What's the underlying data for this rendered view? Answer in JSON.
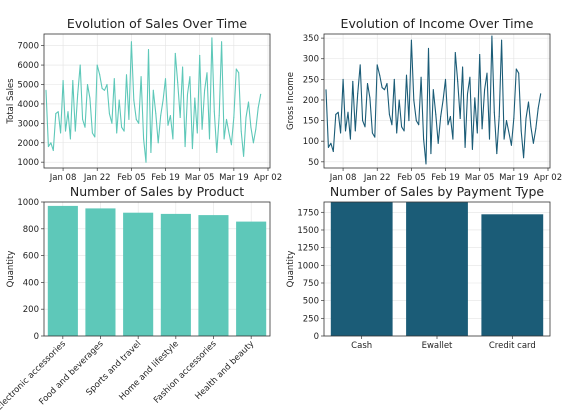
{
  "colors": {
    "teal": "#5ec8b9",
    "navy": "#1b5c77"
  },
  "chart_data": [
    {
      "type": "line",
      "title": "Evolution of Sales Over Time",
      "xlabel": "",
      "ylabel": "Total Sales",
      "x_ticks": [
        "Jan 08",
        "Jan 22",
        "Feb 05",
        "Feb 19",
        "Mar 05",
        "Mar 19",
        "Apr 02"
      ],
      "x_range": [
        "2019-01-01",
        "2019-04-02"
      ],
      "ylim": [
        700,
        7600
      ],
      "y_ticks": [
        1000,
        2000,
        3000,
        4000,
        5000,
        6000,
        7000
      ],
      "grid": true,
      "color": "#5ec8b9",
      "series": [
        {
          "x": [
            "2019-01-01",
            "2019-01-02",
            "2019-01-03",
            "2019-01-04",
            "2019-01-05",
            "2019-01-06",
            "2019-01-07",
            "2019-01-08",
            "2019-01-09",
            "2019-01-10",
            "2019-01-11",
            "2019-01-12",
            "2019-01-13",
            "2019-01-14",
            "2019-01-15",
            "2019-01-16",
            "2019-01-17",
            "2019-01-18",
            "2019-01-19",
            "2019-01-20",
            "2019-01-21",
            "2019-01-22",
            "2019-01-23",
            "2019-01-24",
            "2019-01-25",
            "2019-01-26",
            "2019-01-27",
            "2019-01-28",
            "2019-01-29",
            "2019-01-30",
            "2019-01-31",
            "2019-02-01",
            "2019-02-02",
            "2019-02-03",
            "2019-02-04",
            "2019-02-05",
            "2019-02-06",
            "2019-02-07",
            "2019-02-08",
            "2019-02-09",
            "2019-02-10",
            "2019-02-11",
            "2019-02-12",
            "2019-02-13",
            "2019-02-14",
            "2019-02-15",
            "2019-02-16",
            "2019-02-17",
            "2019-02-18",
            "2019-02-19",
            "2019-02-20",
            "2019-02-21",
            "2019-02-22",
            "2019-02-23",
            "2019-02-24",
            "2019-02-25",
            "2019-02-26",
            "2019-02-27",
            "2019-02-28",
            "2019-03-01",
            "2019-03-02",
            "2019-03-03",
            "2019-03-04",
            "2019-03-05",
            "2019-03-06",
            "2019-03-07",
            "2019-03-08",
            "2019-03-09",
            "2019-03-10",
            "2019-03-11",
            "2019-03-12",
            "2019-03-13",
            "2019-03-14",
            "2019-03-15",
            "2019-03-16",
            "2019-03-17",
            "2019-03-18",
            "2019-03-19",
            "2019-03-20",
            "2019-03-21",
            "2019-03-22",
            "2019-03-23",
            "2019-03-24",
            "2019-03-25",
            "2019-03-26",
            "2019-03-27",
            "2019-03-28",
            "2019-03-29",
            "2019-03-30"
          ],
          "values": [
            4700,
            1800,
            2000,
            1600,
            3500,
            3600,
            2500,
            5200,
            2600,
            3600,
            2200,
            5200,
            2600,
            4500,
            6000,
            3200,
            2800,
            5000,
            4300,
            2500,
            2300,
            6000,
            5500,
            4800,
            4700,
            5000,
            3500,
            3000,
            5300,
            2500,
            4200,
            2800,
            2600,
            5500,
            3200,
            7200,
            4200,
            3200,
            3000,
            5400,
            2200,
            1000,
            6800,
            1500,
            4700,
            3500,
            2000,
            3400,
            4200,
            5300,
            2900,
            3400,
            2200,
            6600,
            5100,
            3300,
            5900,
            1800,
            4500,
            5400,
            1700,
            4300,
            2500,
            6500,
            2700,
            4700,
            5600,
            2200,
            7400,
            3600,
            1500,
            3400,
            7200,
            2200,
            3200,
            2500,
            1900,
            3300,
            5800,
            5600,
            2600,
            1300,
            3300,
            4100,
            2800,
            2000,
            2700,
            3800,
            4500
          ]
        }
      ]
    },
    {
      "type": "line",
      "title": "Evolution of Income Over Time",
      "xlabel": "",
      "ylabel": "Gross Income",
      "x_ticks": [
        "Jan 08",
        "Jan 22",
        "Feb 05",
        "Feb 19",
        "Mar 05",
        "Mar 19",
        "Apr 02"
      ],
      "x_range": [
        "2019-01-01",
        "2019-04-02"
      ],
      "ylim": [
        35,
        360
      ],
      "y_ticks": [
        50,
        100,
        150,
        200,
        250,
        300,
        350
      ],
      "grid": true,
      "color": "#1b5c77",
      "series": [
        {
          "x": [
            "2019-01-01",
            "2019-01-02",
            "2019-01-03",
            "2019-01-04",
            "2019-01-05",
            "2019-01-06",
            "2019-01-07",
            "2019-01-08",
            "2019-01-09",
            "2019-01-10",
            "2019-01-11",
            "2019-01-12",
            "2019-01-13",
            "2019-01-14",
            "2019-01-15",
            "2019-01-16",
            "2019-01-17",
            "2019-01-18",
            "2019-01-19",
            "2019-01-20",
            "2019-01-21",
            "2019-01-22",
            "2019-01-23",
            "2019-01-24",
            "2019-01-25",
            "2019-01-26",
            "2019-01-27",
            "2019-01-28",
            "2019-01-29",
            "2019-01-30",
            "2019-01-31",
            "2019-02-01",
            "2019-02-02",
            "2019-02-03",
            "2019-02-04",
            "2019-02-05",
            "2019-02-06",
            "2019-02-07",
            "2019-02-08",
            "2019-02-09",
            "2019-02-10",
            "2019-02-11",
            "2019-02-12",
            "2019-02-13",
            "2019-02-14",
            "2019-02-15",
            "2019-02-16",
            "2019-02-17",
            "2019-02-18",
            "2019-02-19",
            "2019-02-20",
            "2019-02-21",
            "2019-02-22",
            "2019-02-23",
            "2019-02-24",
            "2019-02-25",
            "2019-02-26",
            "2019-02-27",
            "2019-02-28",
            "2019-03-01",
            "2019-03-02",
            "2019-03-03",
            "2019-03-04",
            "2019-03-05",
            "2019-03-06",
            "2019-03-07",
            "2019-03-08",
            "2019-03-09",
            "2019-03-10",
            "2019-03-11",
            "2019-03-12",
            "2019-03-13",
            "2019-03-14",
            "2019-03-15",
            "2019-03-16",
            "2019-03-17",
            "2019-03-18",
            "2019-03-19",
            "2019-03-20",
            "2019-03-21",
            "2019-03-22",
            "2019-03-23",
            "2019-03-24",
            "2019-03-25",
            "2019-03-26",
            "2019-03-27",
            "2019-03-28",
            "2019-03-29",
            "2019-03-30"
          ],
          "values": [
            225,
            85,
            95,
            75,
            165,
            170,
            120,
            250,
            125,
            170,
            105,
            245,
            125,
            215,
            285,
            150,
            135,
            240,
            205,
            120,
            110,
            285,
            260,
            230,
            225,
            240,
            165,
            140,
            250,
            120,
            200,
            135,
            125,
            260,
            150,
            345,
            200,
            150,
            140,
            255,
            105,
            45,
            325,
            70,
            225,
            165,
            95,
            160,
            200,
            250,
            140,
            160,
            105,
            315,
            245,
            155,
            280,
            85,
            215,
            255,
            80,
            205,
            120,
            310,
            130,
            225,
            265,
            105,
            355,
            170,
            70,
            160,
            345,
            105,
            150,
            120,
            90,
            155,
            275,
            265,
            125,
            60,
            155,
            195,
            135,
            95,
            130,
            180,
            215
          ]
        }
      ]
    },
    {
      "type": "bar",
      "title": "Number of Sales by Product",
      "xlabel": "",
      "ylabel": "Quantity",
      "categories": [
        "Electronic accessories",
        "Food and beverages",
        "Sports and travel",
        "Home and lifestyle",
        "Fashion accessories",
        "Health and beauty"
      ],
      "values": [
        971,
        952,
        920,
        911,
        902,
        854
      ],
      "ylim": [
        0,
        1000
      ],
      "y_ticks": [
        0,
        200,
        400,
        600,
        800,
        1000
      ],
      "grid": true,
      "color": "#5ec8b9"
    },
    {
      "type": "bar",
      "title": "Number of Sales by Payment Type",
      "xlabel": "",
      "ylabel": "Quantity",
      "categories": [
        "Cash",
        "Ewallet",
        "Credit card"
      ],
      "values": [
        1896,
        1895,
        1722
      ],
      "ylim": [
        0,
        1896
      ],
      "y_ticks": [
        0,
        250,
        500,
        750,
        1000,
        1250,
        1500,
        1750
      ],
      "grid": true,
      "color": "#1b5c77"
    }
  ]
}
